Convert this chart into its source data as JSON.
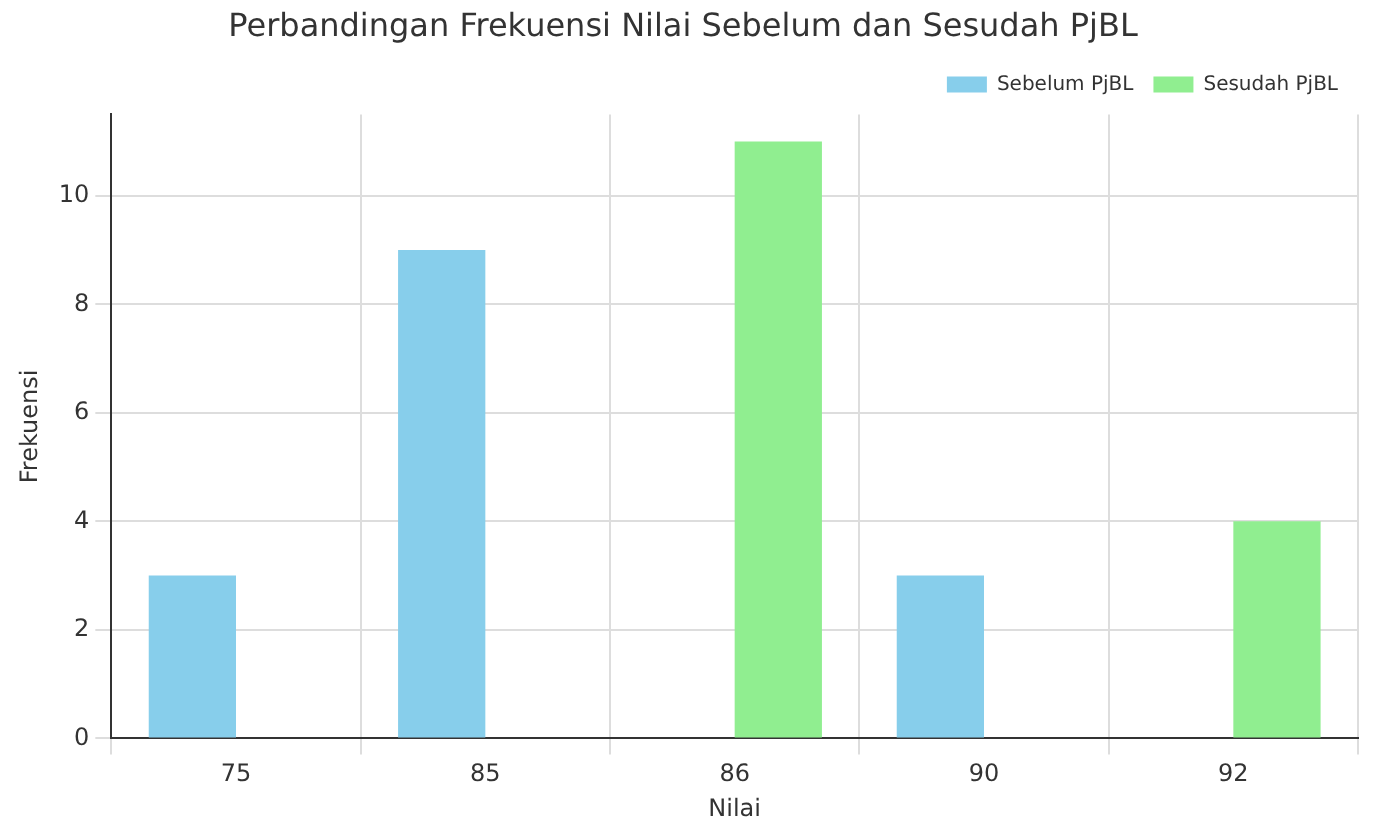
{
  "chart_data": {
    "type": "bar",
    "title": "Perbandingan Frekuensi Nilai Sebelum dan Sesudah PjBL",
    "xlabel": "Nilai",
    "ylabel": "Frekuensi",
    "categories": [
      "75",
      "85",
      "86",
      "90",
      "92"
    ],
    "series": [
      {
        "name": "Sebelum PjBL",
        "color": "#87ceeb",
        "values": [
          3,
          9,
          0,
          3,
          0
        ]
      },
      {
        "name": "Sesudah PjBL",
        "color": "#90ee90",
        "values": [
          0,
          0,
          11,
          0,
          4
        ]
      }
    ],
    "ylim": [
      0,
      11.5
    ],
    "yticks": [
      0,
      2,
      4,
      6,
      8,
      10
    ],
    "grid": true,
    "legend": "top right"
  }
}
